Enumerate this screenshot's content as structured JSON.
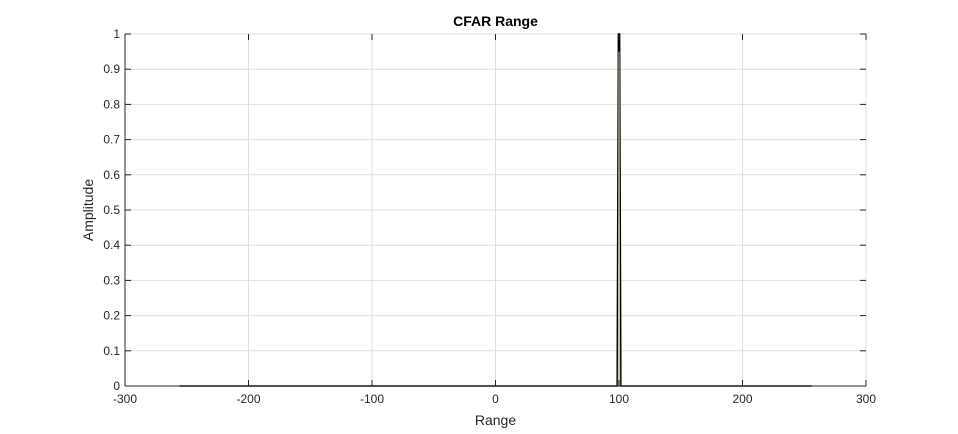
{
  "chart_data": {
    "type": "line",
    "title": "CFAR Range",
    "xlabel": "Range",
    "ylabel": "Amplitude",
    "xlim": [
      -300,
      300
    ],
    "ylim": [
      0,
      1
    ],
    "grid": true,
    "xticks": [
      -300,
      -200,
      -100,
      0,
      100,
      200,
      300
    ],
    "yticks": [
      0,
      0.1,
      0.2,
      0.3,
      0.4,
      0.5,
      0.6,
      0.7,
      0.8,
      0.9,
      1
    ],
    "xtick_labels": [
      "-300",
      "-200",
      "-100",
      "0",
      "100",
      "200",
      "300"
    ],
    "ytick_labels": [
      "0",
      "0.1",
      "0.2",
      "0.3",
      "0.4",
      "0.5",
      "0.6",
      "0.7",
      "0.8",
      "0.9",
      "1"
    ],
    "series": [
      {
        "color": "#000000",
        "x": [
          -256,
          98.5,
          99.5,
          100.5,
          101.5,
          256
        ],
        "y": [
          0,
          0,
          1,
          1,
          0,
          0
        ]
      },
      {
        "color": "#c9c2a0",
        "x": [
          99.5,
          100,
          100.5
        ],
        "y": [
          0,
          0.95,
          0
        ]
      }
    ],
    "colors": {
      "grid": "#dfdfdf",
      "axes": "#262626",
      "background": "#ffffff"
    }
  }
}
